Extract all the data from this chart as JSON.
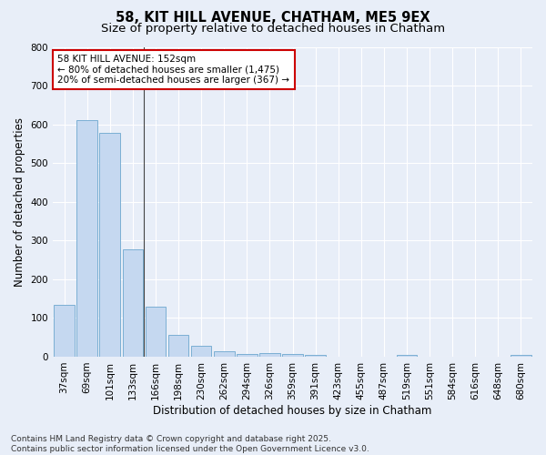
{
  "title1": "58, KIT HILL AVENUE, CHATHAM, ME5 9EX",
  "title2": "Size of property relative to detached houses in Chatham",
  "xlabel": "Distribution of detached houses by size in Chatham",
  "ylabel": "Number of detached properties",
  "categories": [
    "37sqm",
    "69sqm",
    "101sqm",
    "133sqm",
    "166sqm",
    "198sqm",
    "230sqm",
    "262sqm",
    "294sqm",
    "326sqm",
    "359sqm",
    "391sqm",
    "423sqm",
    "455sqm",
    "487sqm",
    "519sqm",
    "551sqm",
    "584sqm",
    "616sqm",
    "648sqm",
    "680sqm"
  ],
  "values": [
    133,
    611,
    578,
    278,
    130,
    57,
    27,
    15,
    8,
    10,
    8,
    5,
    0,
    0,
    0,
    4,
    0,
    0,
    0,
    0,
    5
  ],
  "bar_color": "#c5d8f0",
  "bar_edge_color": "#7bafd4",
  "bg_color": "#e8eef8",
  "grid_color": "#ffffff",
  "annotation_text": "58 KIT HILL AVENUE: 152sqm\n← 80% of detached houses are smaller (1,475)\n20% of semi-detached houses are larger (367) →",
  "annotation_box_color": "#ffffff",
  "annotation_box_edge": "#cc0000",
  "vline_x_index": 3,
  "ylim": [
    0,
    800
  ],
  "yticks": [
    0,
    100,
    200,
    300,
    400,
    500,
    600,
    700,
    800
  ],
  "footer": "Contains HM Land Registry data © Crown copyright and database right 2025.\nContains public sector information licensed under the Open Government Licence v3.0.",
  "title_fontsize": 10.5,
  "subtitle_fontsize": 9.5,
  "axis_label_fontsize": 8.5,
  "tick_fontsize": 7.5,
  "annotation_fontsize": 7.5,
  "footer_fontsize": 6.5
}
